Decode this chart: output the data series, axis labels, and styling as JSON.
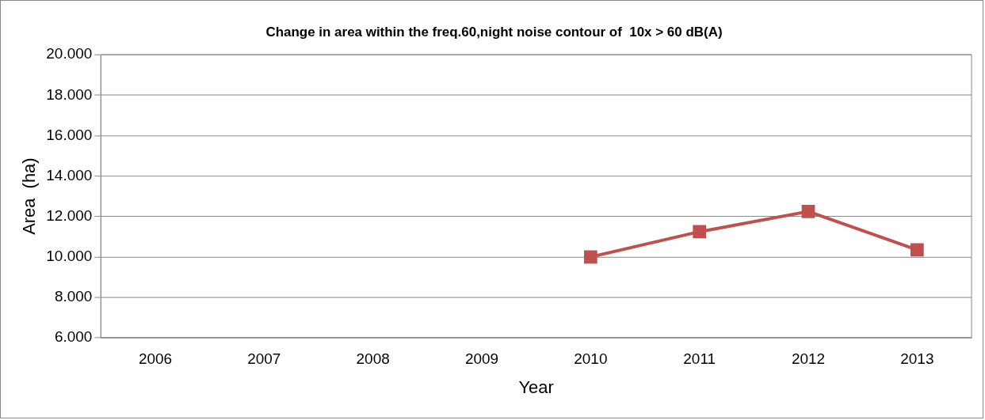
{
  "chart_data": {
    "type": "line",
    "title": "Change in area within the freq.60,night noise contour of  10x > 60 dB(A)",
    "xlabel": "Year",
    "ylabel": "Area  (ha)",
    "categories": [
      "2006",
      "2007",
      "2008",
      "2009",
      "2010",
      "2011",
      "2012",
      "2013"
    ],
    "series": [
      {
        "color": "#c0504d",
        "values": [
          null,
          null,
          null,
          null,
          10000,
          11250,
          12250,
          10350
        ]
      }
    ],
    "ylim": [
      6000,
      20000
    ],
    "yticks": [
      {
        "value": 6000,
        "label": "6.000"
      },
      {
        "value": 8000,
        "label": "8.000"
      },
      {
        "value": 10000,
        "label": "10.000"
      },
      {
        "value": 12000,
        "label": "12.000"
      },
      {
        "value": 14000,
        "label": "14.000"
      },
      {
        "value": 16000,
        "label": "16.000"
      },
      {
        "value": 18000,
        "label": "18.000"
      },
      {
        "value": 20000,
        "label": "20.000"
      }
    ],
    "grid": "y",
    "legend": false,
    "marker": "square",
    "line_style": "solid"
  }
}
